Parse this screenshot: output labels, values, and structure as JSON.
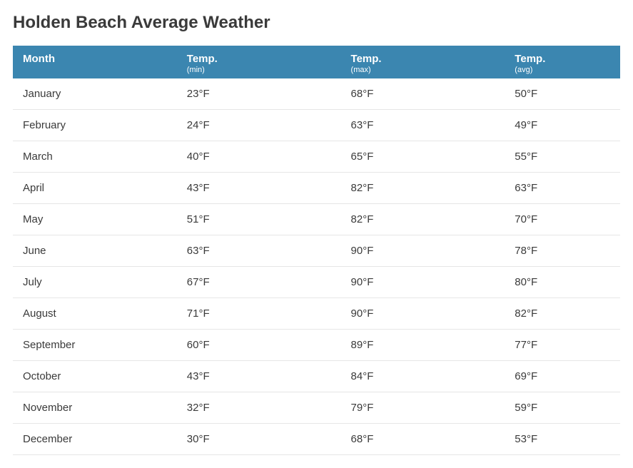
{
  "title": "Holden Beach Average Weather",
  "table": {
    "background_header": "#3b86b0",
    "header_text_color": "#ffffff",
    "row_text_color": "#3a3a3a",
    "border_color": "#e6e6e6",
    "columns": [
      {
        "label": "Month",
        "sub": ""
      },
      {
        "label": "Temp.",
        "sub": "(min)"
      },
      {
        "label": "Temp.",
        "sub": "(max)"
      },
      {
        "label": "Temp.",
        "sub": "(avg)"
      }
    ],
    "rows": [
      {
        "month": "January",
        "min": "23°F",
        "max": "68°F",
        "avg": "50°F"
      },
      {
        "month": "February",
        "min": "24°F",
        "max": "63°F",
        "avg": "49°F"
      },
      {
        "month": "March",
        "min": "40°F",
        "max": "65°F",
        "avg": "55°F"
      },
      {
        "month": "April",
        "min": "43°F",
        "max": "82°F",
        "avg": "63°F"
      },
      {
        "month": "May",
        "min": "51°F",
        "max": "82°F",
        "avg": "70°F"
      },
      {
        "month": "June",
        "min": "63°F",
        "max": "90°F",
        "avg": "78°F"
      },
      {
        "month": "July",
        "min": "67°F",
        "max": "90°F",
        "avg": "80°F"
      },
      {
        "month": "August",
        "min": "71°F",
        "max": "90°F",
        "avg": "82°F"
      },
      {
        "month": "September",
        "min": "60°F",
        "max": "89°F",
        "avg": "77°F"
      },
      {
        "month": "October",
        "min": "43°F",
        "max": "84°F",
        "avg": "69°F"
      },
      {
        "month": "November",
        "min": "32°F",
        "max": "79°F",
        "avg": "59°F"
      },
      {
        "month": "December",
        "min": "30°F",
        "max": "68°F",
        "avg": "53°F"
      }
    ]
  }
}
